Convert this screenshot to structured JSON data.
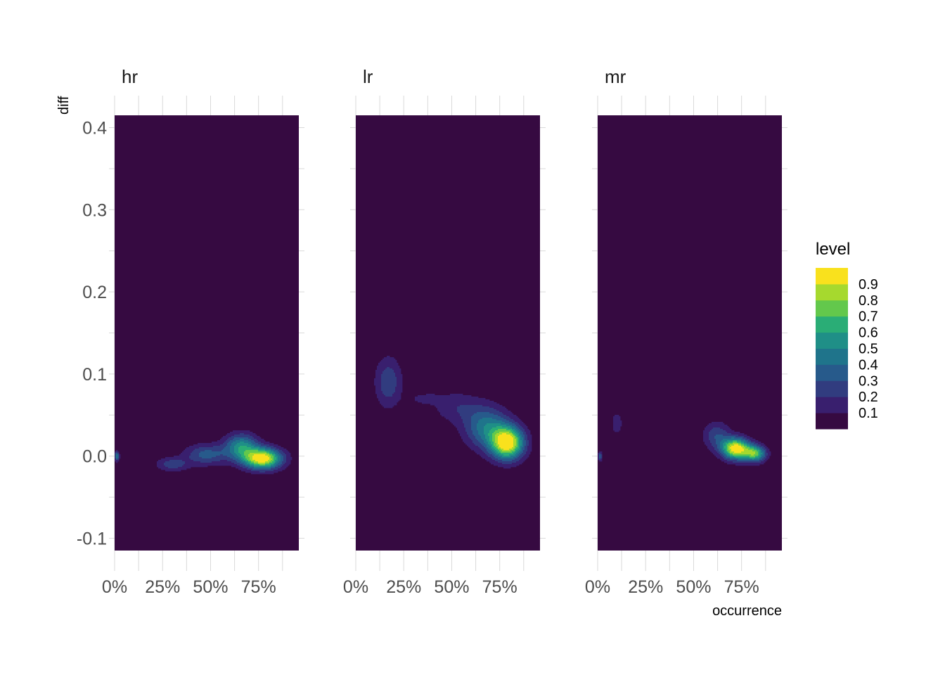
{
  "chart_data": {
    "type": "heatmap",
    "subtype": "filled-density-contour",
    "facets": [
      {
        "name": "hr",
        "peaks": [
          {
            "x": 0.77,
            "y": -0.003,
            "sx": 0.07,
            "sy": 0.009,
            "amp": 1.0
          },
          {
            "x": 0.66,
            "y": 0.012,
            "sx": 0.06,
            "sy": 0.011,
            "amp": 0.52
          },
          {
            "x": 0.48,
            "y": 0.002,
            "sx": 0.08,
            "sy": 0.009,
            "amp": 0.34
          },
          {
            "x": 0.3,
            "y": -0.01,
            "sx": 0.06,
            "sy": 0.006,
            "amp": 0.26
          },
          {
            "x": 0.012,
            "y": 0.0,
            "sx": 0.008,
            "sy": 0.004,
            "amp": 0.5
          }
        ]
      },
      {
        "name": "lr",
        "peaks": [
          {
            "x": 0.79,
            "y": 0.016,
            "sx": 0.06,
            "sy": 0.014,
            "amp": 1.0
          },
          {
            "x": 0.68,
            "y": 0.035,
            "sx": 0.08,
            "sy": 0.018,
            "amp": 0.45
          },
          {
            "x": 0.52,
            "y": 0.06,
            "sx": 0.09,
            "sy": 0.014,
            "amp": 0.17
          },
          {
            "x": 0.36,
            "y": 0.07,
            "sx": 0.06,
            "sy": 0.005,
            "amp": 0.13
          },
          {
            "x": 0.17,
            "y": 0.09,
            "sx": 0.05,
            "sy": 0.022,
            "amp": 0.28
          }
        ]
      },
      {
        "name": "mr",
        "peaks": [
          {
            "x": 0.72,
            "y": 0.009,
            "sx": 0.05,
            "sy": 0.009,
            "amp": 1.0
          },
          {
            "x": 0.82,
            "y": 0.003,
            "sx": 0.04,
            "sy": 0.007,
            "amp": 0.7
          },
          {
            "x": 0.62,
            "y": 0.025,
            "sx": 0.05,
            "sy": 0.012,
            "amp": 0.28
          },
          {
            "x": 0.1,
            "y": 0.04,
            "sx": 0.025,
            "sy": 0.012,
            "amp": 0.15
          },
          {
            "x": 0.012,
            "y": 0.0,
            "sx": 0.007,
            "sy": 0.004,
            "amp": 0.38
          }
        ]
      }
    ],
    "x": {
      "label": "occurrence",
      "range": [
        0,
        0.96
      ],
      "tick_values": [
        0,
        0.25,
        0.5,
        0.75
      ],
      "tick_labels": [
        "0%",
        "25%",
        "50%",
        "75%"
      ],
      "grid_values": [
        0,
        0.125,
        0.25,
        0.375,
        0.5,
        0.625,
        0.75,
        0.875
      ]
    },
    "y": {
      "label": "diff",
      "range": [
        -0.115,
        0.415
      ],
      "tick_values": [
        0.4,
        0.3,
        0.2,
        0.1,
        0.0,
        -0.1
      ],
      "tick_labels": [
        "0.4",
        "0.3",
        "0.2",
        "0.1",
        "0.0",
        "-0.1"
      ],
      "grid_values": [
        0.4,
        0.35,
        0.3,
        0.25,
        0.2,
        0.15,
        0.1,
        0.05,
        0.0,
        -0.05,
        -0.1
      ]
    },
    "legend": {
      "title": "level",
      "position": "right",
      "labels": [
        "0.1",
        "0.2",
        "0.3",
        "0.4",
        "0.5",
        "0.6",
        "0.7",
        "0.8",
        "0.9"
      ],
      "colors": [
        "#360A41",
        "#391F6E",
        "#313C7F",
        "#275A8B",
        "#1F748B",
        "#1F8F87",
        "#2AAD76",
        "#63C84C",
        "#A6D92E",
        "#F9E11D"
      ]
    },
    "grid": true,
    "background": "#ffffff",
    "grid_color": "#d9d9d9"
  }
}
